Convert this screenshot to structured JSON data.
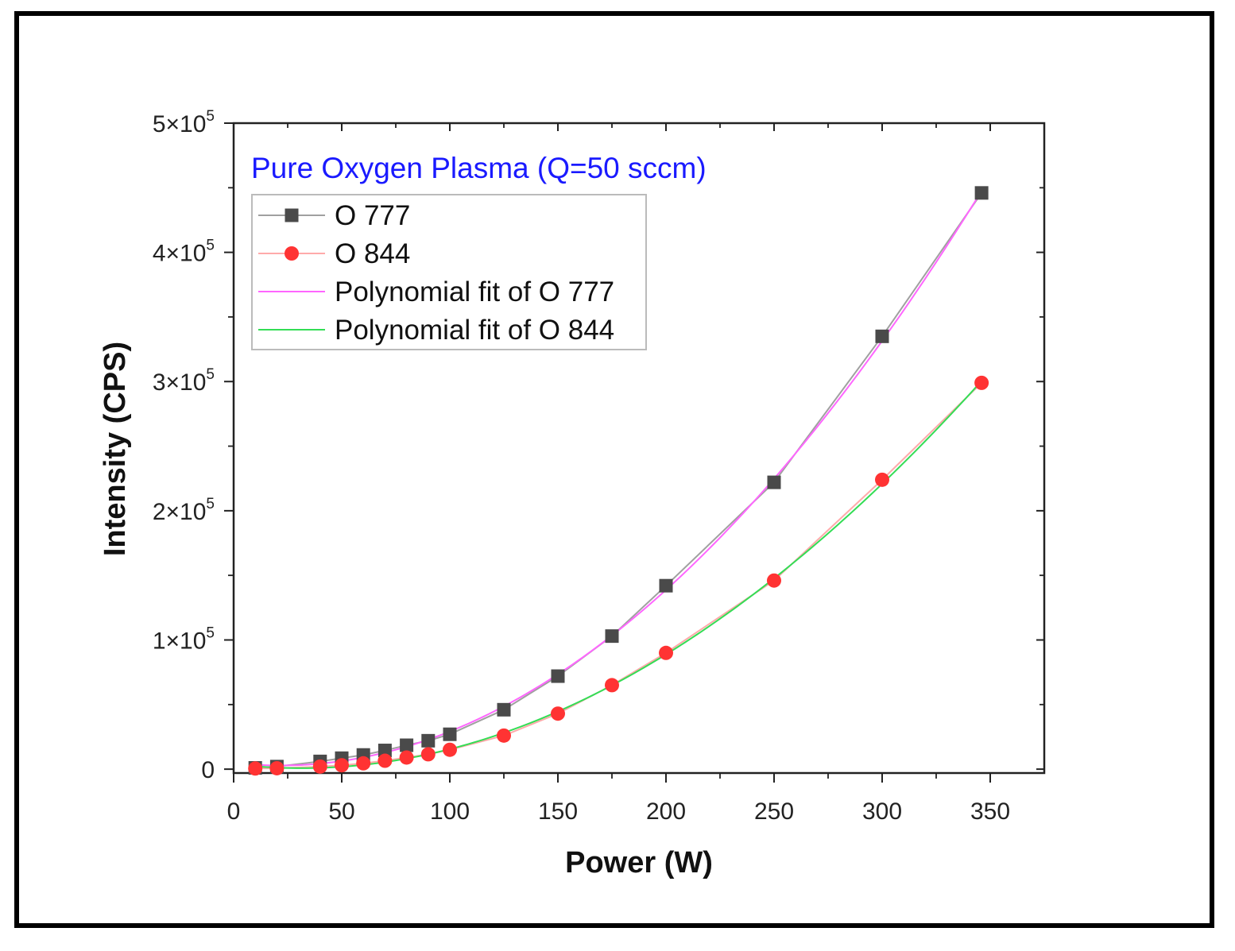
{
  "chart_data": {
    "type": "scatter",
    "annotation": "Pure Oxygen Plasma (Q=50 sccm)",
    "annotation_color": "#1a1aff",
    "xlabel": "Power (W)",
    "ylabel": "Intensity (CPS)",
    "xlim": [
      0,
      375
    ],
    "ylim": [
      -3000,
      500000
    ],
    "x_ticks": [
      0,
      50,
      100,
      150,
      200,
      250,
      300,
      350
    ],
    "x_tick_labels": [
      "0",
      "50",
      "100",
      "150",
      "200",
      "250",
      "300",
      "350"
    ],
    "y_ticks": [
      0,
      100000,
      200000,
      300000,
      400000,
      500000
    ],
    "y_tick_labels": [
      {
        "base": "0",
        "exp": ""
      },
      {
        "base": "1×10",
        "exp": "5"
      },
      {
        "base": "2×10",
        "exp": "5"
      },
      {
        "base": "3×10",
        "exp": "5"
      },
      {
        "base": "4×10",
        "exp": "5"
      },
      {
        "base": "5×10",
        "exp": "5"
      }
    ],
    "legend_position": "top-left",
    "series": [
      {
        "name": "O 777",
        "marker": "square",
        "marker_color": "#4a4a4a",
        "line_color": "#a0a0a0",
        "x": [
          10,
          20,
          40,
          50,
          60,
          70,
          80,
          90,
          100,
          125,
          150,
          175,
          200,
          250,
          300,
          346
        ],
        "y": [
          1000,
          2000,
          6000,
          8500,
          11000,
          14500,
          18500,
          22000,
          27000,
          46000,
          72000,
          103000,
          142000,
          222000,
          335000,
          446000
        ]
      },
      {
        "name": "O 844",
        "marker": "circle",
        "marker_color": "#ff3333",
        "line_color": "#ffaaaa",
        "x": [
          10,
          20,
          40,
          50,
          60,
          70,
          80,
          90,
          100,
          125,
          150,
          175,
          200,
          250,
          300,
          346
        ],
        "y": [
          500,
          700,
          2000,
          3000,
          4500,
          6500,
          9000,
          11500,
          15000,
          26000,
          43000,
          65000,
          90000,
          146000,
          224000,
          299000
        ]
      },
      {
        "name": "Polynomial fit of O 777",
        "line_color": "#ff66ff",
        "fit_of": "O 777"
      },
      {
        "name": "Polynomial fit of O 844",
        "line_color": "#33dd55",
        "fit_of": "O 844"
      }
    ]
  }
}
